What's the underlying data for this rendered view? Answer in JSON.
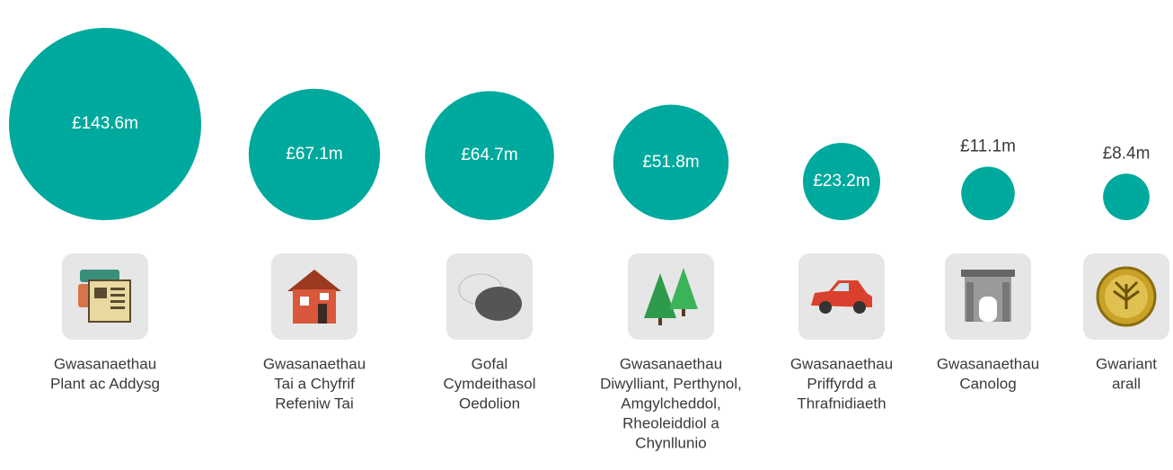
{
  "chart_data": {
    "type": "bubble",
    "color": "#00a99d",
    "categories": [
      [
        "Gwasanaethau",
        "Plant ac Addysg"
      ],
      [
        "Gwasanaethau",
        "Tai a Chyfrif",
        "Refeniw Tai"
      ],
      [
        "Gofal",
        "Cymdeithasol",
        "Oedolion"
      ],
      [
        "Gwasanaethau",
        "Diwylliant, Perthynol,",
        "Amgylcheddol,",
        "Rheoleiddiol a",
        "Chynllunio"
      ],
      [
        "Gwasanaethau",
        "Priffyrdd a",
        "Thrafnidiaeth"
      ],
      [
        "Gwasanaethau",
        "Canolog"
      ],
      [
        "Gwariant",
        "arall"
      ]
    ],
    "values": [
      143.6,
      67.1,
      64.7,
      51.8,
      23.2,
      11.1,
      8.4
    ],
    "value_labels": [
      "£143.6m",
      "£67.1m",
      "£64.7m",
      "£51.8m",
      "£23.2m",
      "£11.1m",
      "£8.4m"
    ]
  }
}
